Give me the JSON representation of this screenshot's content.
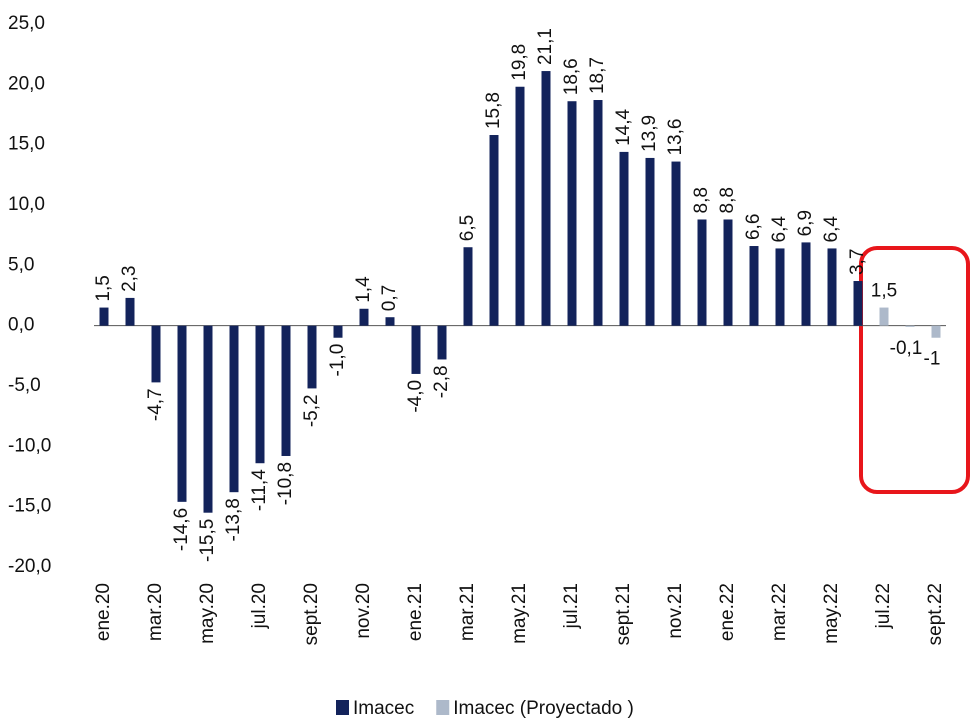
{
  "chart_data": {
    "type": "bar",
    "categories": [
      "ene.20",
      null,
      "mar.20",
      null,
      "may.20",
      null,
      "jul.20",
      null,
      "sept.20",
      null,
      "nov.20",
      null,
      "ene.21",
      null,
      "mar.21",
      null,
      "may.21",
      null,
      "jul.21",
      null,
      "sept.21",
      null,
      "nov.21",
      null,
      "ene.22",
      null,
      "mar.22",
      null,
      "may.22",
      null,
      "jul.22",
      null,
      "sept.22"
    ],
    "series": [
      {
        "name": "Imacec",
        "color": "#13235b",
        "values": [
          1.5,
          2.3,
          -4.7,
          -14.6,
          -15.5,
          -13.8,
          -11.4,
          -10.8,
          -5.2,
          -1.0,
          1.4,
          0.7,
          -4.0,
          -2.8,
          6.5,
          15.8,
          19.8,
          21.1,
          18.6,
          18.7,
          14.4,
          13.9,
          13.6,
          8.8,
          8.8,
          6.6,
          6.4,
          6.9,
          6.4,
          3.7,
          null,
          null,
          null
        ],
        "value_labels": [
          "1,5",
          "2,3",
          "-4,7",
          "-14,6",
          "-15,5",
          "-13,8",
          "-11,4",
          "-10,8",
          "-5,2",
          "-1,0",
          "1,4",
          "0,7",
          "-4,0",
          "-2,8",
          "6,5",
          "15,8",
          "19,8",
          "21,1",
          "18,6",
          "18,7",
          "14,4",
          "13,9",
          "13,6",
          "8,8",
          "8,8",
          "6,6",
          "6,4",
          "6,9",
          "6,4",
          "3,7",
          null,
          null,
          null
        ]
      },
      {
        "name": "Imacec (Proyectado )",
        "color": "#adb9ca",
        "values": [
          null,
          null,
          null,
          null,
          null,
          null,
          null,
          null,
          null,
          null,
          null,
          null,
          null,
          null,
          null,
          null,
          null,
          null,
          null,
          null,
          null,
          null,
          null,
          null,
          null,
          null,
          null,
          null,
          null,
          null,
          1.5,
          -0.1,
          -1
        ],
        "value_labels": [
          null,
          null,
          null,
          null,
          null,
          null,
          null,
          null,
          null,
          null,
          null,
          null,
          null,
          null,
          null,
          null,
          null,
          null,
          null,
          null,
          null,
          null,
          null,
          null,
          null,
          null,
          null,
          null,
          null,
          null,
          "1,5",
          "-0,1",
          "-1"
        ]
      }
    ],
    "ylim": [
      -20,
      25
    ],
    "yticks": [
      {
        "value": -20,
        "label": "-20,0"
      },
      {
        "value": -15,
        "label": "-15,0"
      },
      {
        "value": -10,
        "label": "-10,0"
      },
      {
        "value": -5,
        "label": "-5,0"
      },
      {
        "value": 0,
        "label": "0,0"
      },
      {
        "value": 5,
        "label": "5,0"
      },
      {
        "value": 10,
        "label": "10,0"
      },
      {
        "value": 15,
        "label": "15,0"
      },
      {
        "value": 20,
        "label": "20,0"
      },
      {
        "value": 25,
        "label": "25,0"
      }
    ],
    "legend": "bottom"
  }
}
